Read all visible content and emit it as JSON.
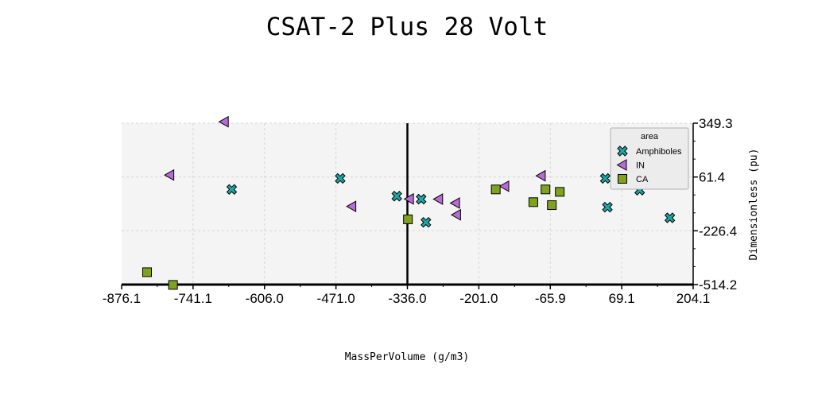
{
  "chart_data": {
    "type": "scatter",
    "title": "CSAT-2 Plus 28 Volt",
    "xlabel": "MassPerVolume (g/m3)",
    "ylabel": "Dimensionless (pu)",
    "xlim": [
      -876.1,
      204.1
    ],
    "ylim": [
      -514.2,
      349.3
    ],
    "x_ticks": [
      "-876.1",
      "-741.1",
      "-606.0",
      "-471.0",
      "-336.0",
      "-201.0",
      "-65.9",
      "69.1",
      "204.1"
    ],
    "y_ticks": [
      "349.3",
      "61.4",
      "-226.4",
      "-514.2"
    ],
    "grid": true,
    "vertical_reference_line": -336.0,
    "legend": {
      "title": "area",
      "position": "top-right"
    },
    "series": [
      {
        "name": "Amphiboles",
        "marker": "x",
        "color": "#1fa6a6",
        "points": [
          [
            -668,
            -5
          ],
          [
            -463,
            54
          ],
          [
            -356,
            -41
          ],
          [
            -310,
            -57
          ],
          [
            -301,
            -181
          ],
          [
            38,
            54
          ],
          [
            42,
            -100
          ],
          [
            103,
            -9
          ],
          [
            160,
            -157
          ]
        ]
      },
      {
        "name": "IN",
        "marker": "triangle-left",
        "color": "#b86ad6",
        "points": [
          [
            -682,
            357
          ],
          [
            -785,
            72
          ],
          [
            -441,
            -96
          ],
          [
            -332,
            -56
          ],
          [
            -277,
            -57
          ],
          [
            -245,
            -78
          ],
          [
            -243,
            -141
          ],
          [
            -152,
            12
          ],
          [
            -83,
            68
          ]
        ]
      },
      {
        "name": "CA",
        "marker": "square",
        "color": "#7fa31f",
        "points": [
          [
            -828,
            -448
          ],
          [
            -779,
            -516
          ],
          [
            -335,
            -165
          ],
          [
            -169,
            -5
          ],
          [
            -98,
            -73
          ],
          [
            -75,
            -5
          ],
          [
            -63,
            -89
          ],
          [
            -48,
            -18
          ]
        ]
      }
    ]
  }
}
